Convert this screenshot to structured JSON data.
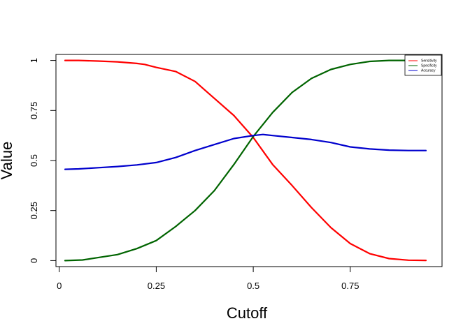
{
  "chart_data": {
    "type": "line",
    "xlabel": "Cutoff",
    "ylabel": "Value",
    "xlim": [
      -0.0085,
      0.9865
    ],
    "ylim": [
      -0.03,
      1.03
    ],
    "x_ticks": [
      0,
      0.25,
      0.5,
      0.75
    ],
    "x_tick_labels": [
      "0",
      "0.25",
      "0.5",
      "0.75"
    ],
    "y_ticks": [
      0,
      0.25,
      0.5,
      0.75,
      1
    ],
    "y_tick_labels": [
      "0",
      "0.25",
      "0.5",
      "0.75",
      "1"
    ],
    "legend_position": "top-right",
    "grid": false,
    "series": [
      {
        "name": "Sensitivity",
        "color": "#ff0000",
        "x": [
          0.015,
          0.05,
          0.1,
          0.15,
          0.2,
          0.22,
          0.25,
          0.3,
          0.35,
          0.4,
          0.45,
          0.5,
          0.55,
          0.6,
          0.65,
          0.7,
          0.75,
          0.8,
          0.85,
          0.9,
          0.945
        ],
        "y": [
          1.0,
          1.0,
          0.997,
          0.993,
          0.985,
          0.98,
          0.965,
          0.945,
          0.895,
          0.81,
          0.725,
          0.615,
          0.48,
          0.375,
          0.265,
          0.165,
          0.085,
          0.035,
          0.01,
          0.002,
          0.001
        ]
      },
      {
        "name": "Specificity",
        "color": "#006400",
        "x": [
          0.015,
          0.06,
          0.1,
          0.15,
          0.2,
          0.25,
          0.3,
          0.35,
          0.4,
          0.45,
          0.5,
          0.55,
          0.6,
          0.65,
          0.7,
          0.75,
          0.8,
          0.85,
          0.9,
          0.945
        ],
        "y": [
          0.0,
          0.003,
          0.015,
          0.03,
          0.06,
          0.1,
          0.17,
          0.25,
          0.35,
          0.48,
          0.62,
          0.74,
          0.84,
          0.91,
          0.955,
          0.98,
          0.995,
          1.0,
          1.0,
          1.0
        ]
      },
      {
        "name": "Accuracy",
        "color": "#0000cd",
        "x": [
          0.015,
          0.05,
          0.1,
          0.15,
          0.2,
          0.25,
          0.3,
          0.35,
          0.4,
          0.45,
          0.5,
          0.525,
          0.55,
          0.6,
          0.65,
          0.7,
          0.75,
          0.8,
          0.85,
          0.9,
          0.945
        ],
        "y": [
          0.456,
          0.458,
          0.464,
          0.47,
          0.478,
          0.49,
          0.515,
          0.55,
          0.58,
          0.61,
          0.625,
          0.63,
          0.625,
          0.615,
          0.605,
          0.59,
          0.568,
          0.558,
          0.552,
          0.55,
          0.55
        ]
      }
    ]
  }
}
